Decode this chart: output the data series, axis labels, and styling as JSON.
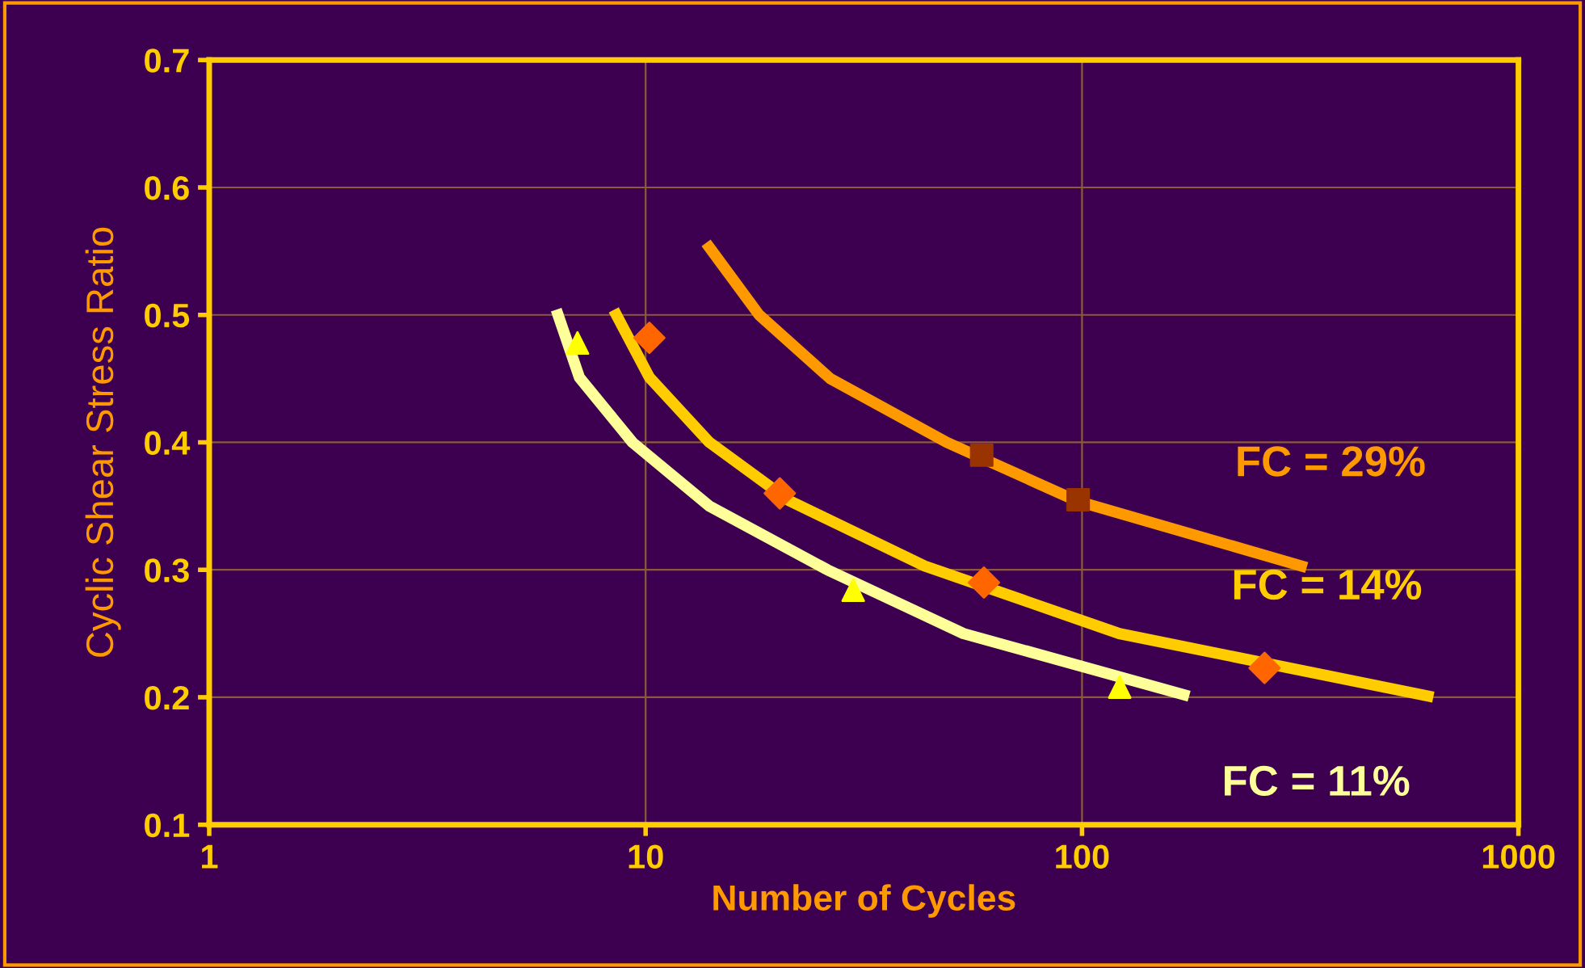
{
  "chart_data": {
    "type": "line",
    "xlabel": "Number of Cycles",
    "ylabel": "Cyclic Shear Stress Ratio",
    "log": "x",
    "grid": true,
    "legend": false,
    "xlim": [
      1,
      1000
    ],
    "xticks": [
      1,
      10,
      100,
      1000
    ],
    "ylim": [
      0.1,
      0.7
    ],
    "yticks": [
      0.1,
      0.2,
      0.3,
      0.4,
      0.5,
      0.6,
      0.7
    ],
    "series": [
      {
        "name": "FC = 29%",
        "color": "#ff9900",
        "marker": "none",
        "x": [
          14.0,
          18.2,
          26.5,
          49,
          97.5,
          318
        ],
        "values": [
          0.553,
          0.5,
          0.45,
          0.4,
          0.354,
          0.303
        ]
      },
      {
        "name": "FC = 14%",
        "color": "#ffcc00",
        "marker": "none",
        "x": [
          8.57,
          10.2,
          14,
          21.4,
          43.6,
          121.7,
          620
        ],
        "values": [
          0.5,
          0.451,
          0.4,
          0.354,
          0.303,
          0.25,
          0.201
        ]
      },
      {
        "name": "FC = 11%",
        "color": "#ffff99",
        "marker": "none",
        "x": [
          6.3,
          7.05,
          9.33,
          14,
          26.1,
          53.5,
          171
        ],
        "values": [
          0.5,
          0.451,
          0.4,
          0.35,
          0.3,
          0.25,
          0.202
        ]
      },
      {
        "type": "scatter",
        "color": "#993300",
        "marker": "square",
        "x": [
          58.9,
          98
        ],
        "values": [
          0.39,
          0.355
        ]
      },
      {
        "type": "scatter",
        "color": "#ff6600",
        "marker": "diamond",
        "x": [
          10.2,
          20.3,
          59.6,
          262
        ],
        "values": [
          0.482,
          0.36,
          0.29,
          0.223
        ]
      },
      {
        "type": "scatter",
        "color": "#ffff00",
        "marker": "triangle",
        "x": [
          6.98,
          29.9,
          122
        ],
        "values": [
          0.478,
          0.284,
          0.208
        ]
      }
    ]
  }
}
